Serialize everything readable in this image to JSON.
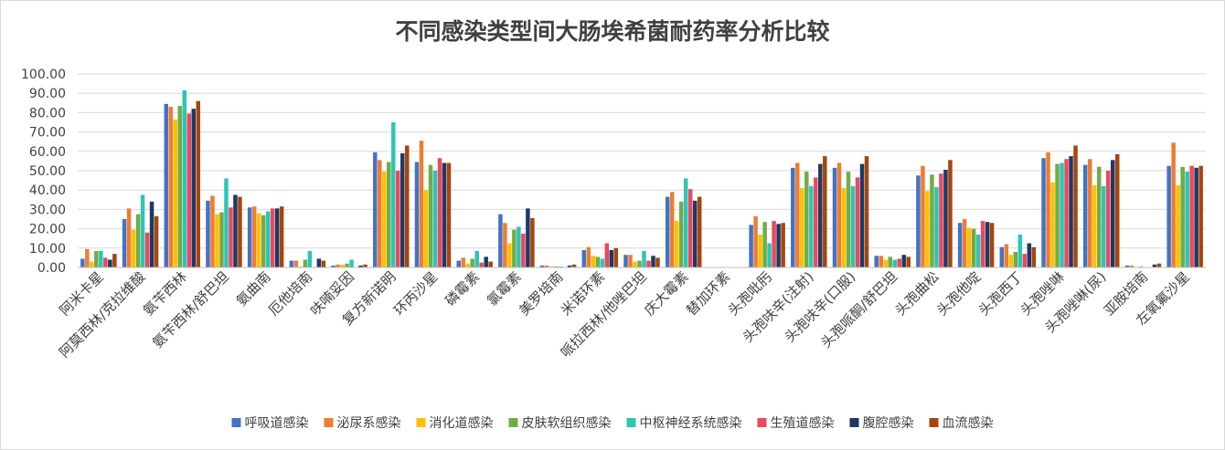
{
  "chart_data": {
    "type": "bar",
    "title": "不同感染类型间大肠埃希菌耐药率分析比较",
    "ylim": [
      0,
      100
    ],
    "yticks": [
      "0.00",
      "10.00",
      "20.00",
      "30.00",
      "40.00",
      "50.00",
      "60.00",
      "70.00",
      "80.00",
      "90.00",
      "100.00"
    ],
    "grid": true,
    "legend_position": "bottom",
    "categories": [
      "阿米卡星",
      "阿莫西林/克拉维酸",
      "氨苄西林",
      "氨苄西林/舒巴坦",
      "氨曲南",
      "厄他培南",
      "呋喃妥因",
      "复方新诺明",
      "环丙沙星",
      "磷霉素",
      "氯霉素",
      "美罗培南",
      "米诺环素",
      "哌拉西林/他唑巴坦",
      "庆大霉素",
      "替加环素",
      "头孢吡肟",
      "头孢呋辛(注射)",
      "头孢呋辛(口服)",
      "头孢哌酮/舒巴坦",
      "头孢曲松",
      "头孢他啶",
      "头孢西丁",
      "头孢唑啉",
      "头孢唑啉(尿)",
      "亚胺培南",
      "左氧氟沙星"
    ],
    "series": [
      {
        "name": "呼吸道感染",
        "color": "#4472C4",
        "values": [
          4.5,
          25,
          84.5,
          34.5,
          31,
          3.5,
          1,
          59.5,
          54.5,
          3.5,
          27.5,
          1,
          9,
          6.5,
          36.5,
          0,
          22,
          51.5,
          51.5,
          6,
          47.5,
          23,
          10.5,
          56.5,
          53,
          1,
          52.5
        ]
      },
      {
        "name": "泌尿系感染",
        "color": "#ED7D31",
        "values": [
          9.5,
          30.5,
          83,
          37,
          31.5,
          3.5,
          1.5,
          55.5,
          65.5,
          5,
          23,
          1,
          10.5,
          6.5,
          39,
          0,
          26.5,
          54,
          54,
          6,
          52.5,
          25,
          12,
          59.5,
          56,
          1,
          64.5
        ]
      },
      {
        "name": "消化道感染",
        "color": "#FFC000",
        "values": [
          3,
          19.5,
          76.5,
          27.5,
          28,
          0.5,
          1.5,
          49.5,
          40,
          2,
          12.5,
          0.5,
          6,
          3,
          24,
          0,
          17,
          41,
          41,
          4,
          39.5,
          20.5,
          6.5,
          44,
          42.5,
          0,
          42.5
        ]
      },
      {
        "name": "皮肤软组织感染",
        "color": "#70AD47",
        "values": [
          8.5,
          27.5,
          83.5,
          28.5,
          27,
          4,
          2,
          54.5,
          53,
          4.5,
          19.5,
          0.5,
          5.5,
          3.5,
          34,
          0,
          23.5,
          49.5,
          49.5,
          5.5,
          48,
          20,
          8,
          53.5,
          52,
          0.5,
          52
        ]
      },
      {
        "name": "中枢神经系统感染",
        "color": "#2EC4B6",
        "values": [
          8.5,
          37.5,
          91.5,
          46,
          29,
          8.5,
          4,
          75,
          50,
          8.5,
          21,
          0.5,
          4.5,
          8.5,
          46,
          0,
          12.5,
          42,
          42,
          4,
          41.5,
          17,
          17,
          54,
          42,
          0,
          49.5
        ]
      },
      {
        "name": "生殖道感染",
        "color": "#E84A5F",
        "values": [
          5,
          18,
          79.5,
          31,
          30.5,
          0,
          0,
          50,
          56.5,
          2.5,
          17.5,
          0,
          12.5,
          3.5,
          40.5,
          0,
          24,
          46.5,
          46.5,
          4.5,
          48.5,
          24,
          7,
          56,
          50,
          0,
          52.5
        ]
      },
      {
        "name": "腹腔感染",
        "color": "#203864",
        "values": [
          4,
          34,
          82,
          37.5,
          30.5,
          4.5,
          1,
          59,
          54,
          5.5,
          30.5,
          1,
          9,
          6,
          34.5,
          0,
          22.5,
          53.5,
          53.5,
          6.5,
          50.5,
          23.5,
          12.5,
          57.5,
          55.5,
          1.5,
          51.5
        ]
      },
      {
        "name": "血流感染",
        "color": "#A5460F",
        "values": [
          7,
          26.5,
          86,
          36.5,
          31.5,
          3.5,
          1.5,
          63,
          54,
          3,
          25.5,
          1.5,
          10,
          5,
          36.5,
          0,
          23,
          57.5,
          57.5,
          5.5,
          55.5,
          23,
          10.5,
          63,
          58.5,
          2,
          52.5
        ]
      }
    ]
  }
}
